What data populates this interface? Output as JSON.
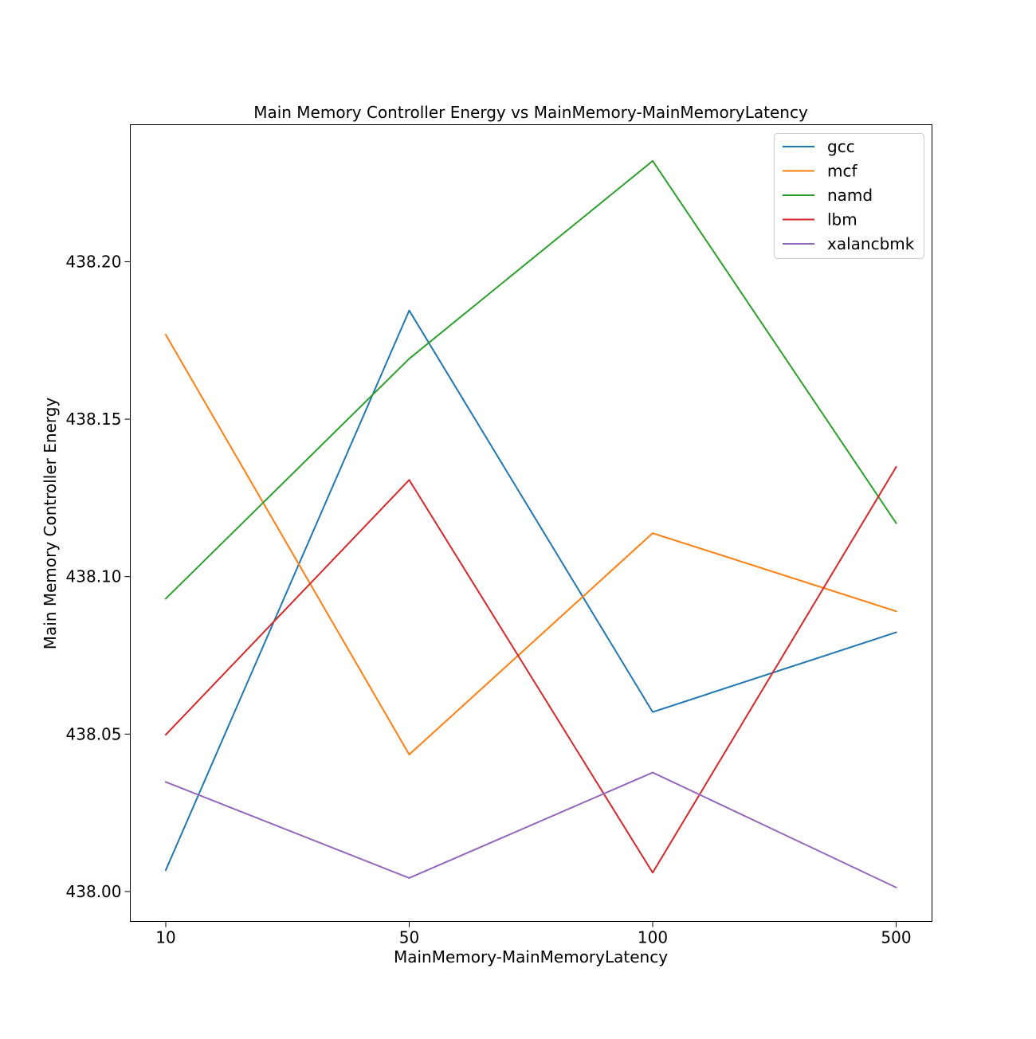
{
  "chart_data": {
    "type": "line",
    "title": "Main Memory Controller Energy vs MainMemory-MainMemoryLatency",
    "xlabel": "MainMemory-MainMemoryLatency",
    "ylabel": "Main Memory Controller Energy",
    "categories": [
      "10",
      "50",
      "100",
      "500"
    ],
    "y_ticks": [
      "438.00",
      "438.05",
      "438.10",
      "438.15",
      "438.20"
    ],
    "ylim": [
      437.9905,
      438.2435
    ],
    "grid": false,
    "legend_position": "top-right",
    "series": [
      {
        "name": "gcc",
        "color": "#1f77b4",
        "values": [
          438.0068,
          438.1845,
          438.057,
          438.0823
        ]
      },
      {
        "name": "mcf",
        "color": "#ff7f0e",
        "values": [
          438.1768,
          438.0435,
          438.1138,
          438.089
        ]
      },
      {
        "name": "namd",
        "color": "#2ca02c",
        "values": [
          438.093,
          438.1692,
          438.232,
          438.117
        ]
      },
      {
        "name": "lbm",
        "color": "#d62728",
        "values": [
          438.0498,
          438.1307,
          438.006,
          438.1348
        ]
      },
      {
        "name": "xalancbmk",
        "color": "#9467bd",
        "values": [
          438.0348,
          438.0043,
          438.0378,
          438.0013
        ]
      }
    ]
  }
}
